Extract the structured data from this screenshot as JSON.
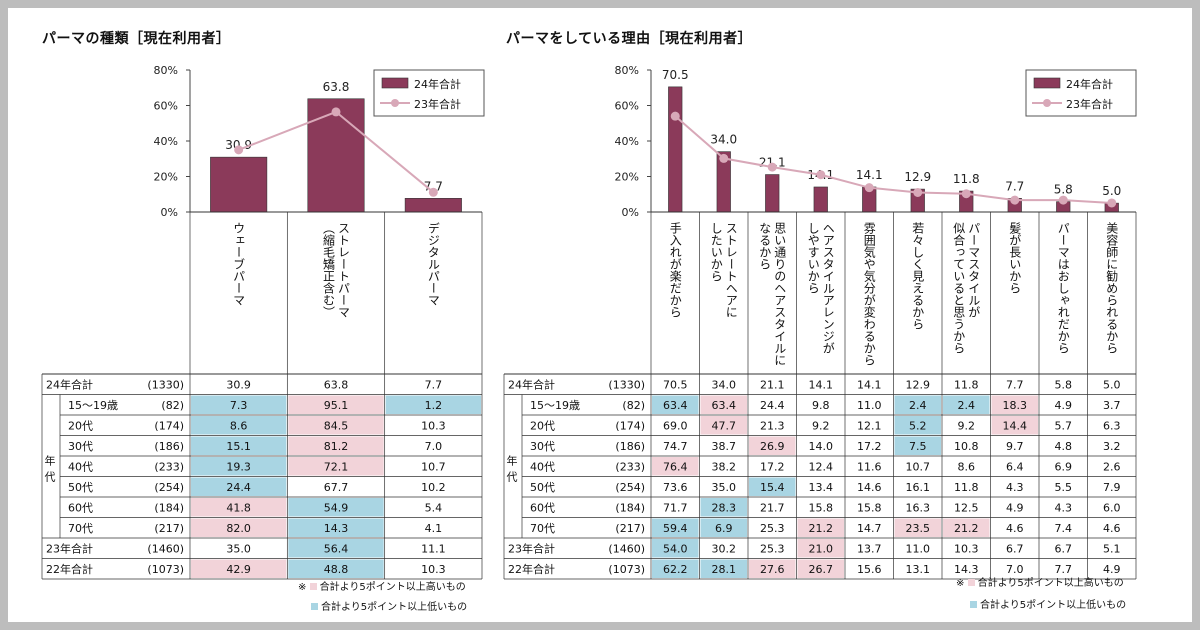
{
  "colors": {
    "bar": "#8b3a5a",
    "line": "#d8a8b8",
    "high": "#f2d3d9",
    "low": "#a9d5e3",
    "frame": "#ffffff",
    "bg": "#bdbdbd"
  },
  "left": {
    "title": "パーマの種類［現在利用者］",
    "legend": [
      "24年合計",
      "23年合計"
    ],
    "chart_data": {
      "type": "bar",
      "categories": [
        "ウェーブパーマ",
        "ストレートパーマ（縮毛矯正含む）",
        "デジタルパーマ"
      ],
      "category_lines": [
        [
          "ウェーブパーマ"
        ],
        [
          "ストレートパーマ",
          "（縮毛矯正含む）"
        ],
        [
          "デジタルパーマ"
        ]
      ],
      "series": [
        {
          "name": "24年合計",
          "values": [
            30.9,
            63.8,
            7.7
          ]
        },
        {
          "name": "23年合計",
          "values": [
            35.0,
            56.4,
            11.1
          ]
        }
      ],
      "ylim": [
        0,
        80
      ],
      "yticks": [
        "0%",
        "20%",
        "40%",
        "60%",
        "80%"
      ]
    },
    "table": {
      "side_label": "年代",
      "rows": [
        {
          "label": "24年合計",
          "n": "(1330)",
          "group": false,
          "values": [
            "30.9",
            "63.8",
            "7.7"
          ],
          "marks": [
            "",
            "",
            ""
          ]
        },
        {
          "label": "15～19歳",
          "n": "(82)",
          "group": true,
          "values": [
            "7.3",
            "95.1",
            "1.2"
          ],
          "marks": [
            "L",
            "H",
            "L"
          ]
        },
        {
          "label": "20代",
          "n": "(174)",
          "group": true,
          "values": [
            "8.6",
            "84.5",
            "10.3"
          ],
          "marks": [
            "L",
            "H",
            ""
          ]
        },
        {
          "label": "30代",
          "n": "(186)",
          "group": true,
          "values": [
            "15.1",
            "81.2",
            "7.0"
          ],
          "marks": [
            "L",
            "H",
            ""
          ]
        },
        {
          "label": "40代",
          "n": "(233)",
          "group": true,
          "values": [
            "19.3",
            "72.1",
            "10.7"
          ],
          "marks": [
            "L",
            "H",
            ""
          ]
        },
        {
          "label": "50代",
          "n": "(254)",
          "group": true,
          "values": [
            "24.4",
            "67.7",
            "10.2"
          ],
          "marks": [
            "L",
            "",
            ""
          ]
        },
        {
          "label": "60代",
          "n": "(184)",
          "group": true,
          "values": [
            "41.8",
            "54.9",
            "5.4"
          ],
          "marks": [
            "H",
            "L",
            ""
          ]
        },
        {
          "label": "70代",
          "n": "(217)",
          "group": true,
          "values": [
            "82.0",
            "14.3",
            "4.1"
          ],
          "marks": [
            "H",
            "L",
            ""
          ]
        },
        {
          "label": "23年合計",
          "n": "(1460)",
          "group": false,
          "values": [
            "35.0",
            "56.4",
            "11.1"
          ],
          "marks": [
            "",
            "L",
            ""
          ]
        },
        {
          "label": "22年合計",
          "n": "(1073)",
          "group": false,
          "values": [
            "42.9",
            "48.8",
            "10.3"
          ],
          "marks": [
            "H",
            "L",
            ""
          ]
        }
      ]
    },
    "notes": {
      "mark": "※",
      "high": "合計より5ポイント以上高いもの",
      "low": "合計より5ポイント以上低いもの"
    }
  },
  "right": {
    "title": "パーマをしている理由［現在利用者］",
    "legend": [
      "24年合計",
      "23年合計"
    ],
    "chart_data": {
      "type": "bar",
      "categories": [
        "手入れが楽だから",
        "ストレートヘアにしたいから",
        "思い通りのヘアスタイルになるから",
        "ヘアスタイルアレンジがしやすいから",
        "雰囲気や気分が変わるから",
        "若々しく見えるから",
        "パーマスタイルが似合っていると思うから",
        "髪が長いから",
        "パーマはおしゃれだから",
        "美容師に勧められるから"
      ],
      "category_lines": [
        [
          "手入れが楽だから"
        ],
        [
          "ストレートヘアに",
          "したいから"
        ],
        [
          "思い通りのヘアスタイルに",
          "なるから"
        ],
        [
          "ヘアスタイルアレンジが",
          "しやすいから"
        ],
        [
          "雰囲気や気分が変わるから"
        ],
        [
          "若々しく見えるから"
        ],
        [
          "パーマスタイルが",
          "似合っていると思うから"
        ],
        [
          "髪が長いから"
        ],
        [
          "パーマはおしゃれだから"
        ],
        [
          "美容師に勧められるから"
        ]
      ],
      "series": [
        {
          "name": "24年合計",
          "values": [
            70.5,
            34.0,
            21.1,
            14.1,
            14.1,
            12.9,
            11.8,
            7.7,
            5.8,
            5.0
          ]
        },
        {
          "name": "23年合計",
          "values": [
            54.0,
            30.2,
            25.3,
            21.0,
            13.7,
            11.0,
            10.3,
            6.7,
            6.7,
            5.1
          ]
        }
      ],
      "ylim": [
        0,
        80
      ],
      "yticks": [
        "0%",
        "20%",
        "40%",
        "60%",
        "80%"
      ]
    },
    "table": {
      "side_label": "年代",
      "rows": [
        {
          "label": "24年合計",
          "n": "(1330)",
          "group": false,
          "values": [
            "70.5",
            "34.0",
            "21.1",
            "14.1",
            "14.1",
            "12.9",
            "11.8",
            "7.7",
            "5.8",
            "5.0"
          ],
          "marks": [
            "",
            "",
            "",
            "",
            "",
            "",
            "",
            "",
            "",
            ""
          ]
        },
        {
          "label": "15～19歳",
          "n": "(82)",
          "group": true,
          "values": [
            "63.4",
            "63.4",
            "24.4",
            "9.8",
            "11.0",
            "2.4",
            "2.4",
            "18.3",
            "4.9",
            "3.7"
          ],
          "marks": [
            "L",
            "H",
            "",
            "",
            "",
            "L",
            "L",
            "H",
            "",
            ""
          ]
        },
        {
          "label": "20代",
          "n": "(174)",
          "group": true,
          "values": [
            "69.0",
            "47.7",
            "21.3",
            "9.2",
            "12.1",
            "5.2",
            "9.2",
            "14.4",
            "5.7",
            "6.3"
          ],
          "marks": [
            "",
            "H",
            "",
            "",
            "",
            "L",
            "",
            "H",
            "",
            ""
          ]
        },
        {
          "label": "30代",
          "n": "(186)",
          "group": true,
          "values": [
            "74.7",
            "38.7",
            "26.9",
            "14.0",
            "17.2",
            "7.5",
            "10.8",
            "9.7",
            "4.8",
            "3.2"
          ],
          "marks": [
            "",
            "",
            "H",
            "",
            "",
            "L",
            "",
            "",
            "",
            ""
          ]
        },
        {
          "label": "40代",
          "n": "(233)",
          "group": true,
          "values": [
            "76.4",
            "38.2",
            "17.2",
            "12.4",
            "11.6",
            "10.7",
            "8.6",
            "6.4",
            "6.9",
            "2.6"
          ],
          "marks": [
            "H",
            "",
            "",
            "",
            "",
            "",
            "",
            "",
            "",
            ""
          ]
        },
        {
          "label": "50代",
          "n": "(254)",
          "group": true,
          "values": [
            "73.6",
            "35.0",
            "15.4",
            "13.4",
            "14.6",
            "16.1",
            "11.8",
            "4.3",
            "5.5",
            "7.9"
          ],
          "marks": [
            "",
            "",
            "L",
            "",
            "",
            "",
            "",
            "",
            "",
            ""
          ]
        },
        {
          "label": "60代",
          "n": "(184)",
          "group": true,
          "values": [
            "71.7",
            "28.3",
            "21.7",
            "15.8",
            "15.8",
            "16.3",
            "12.5",
            "4.9",
            "4.3",
            "6.0"
          ],
          "marks": [
            "",
            "L",
            "",
            "",
            "",
            "",
            "",
            "",
            "",
            ""
          ]
        },
        {
          "label": "70代",
          "n": "(217)",
          "group": true,
          "values": [
            "59.4",
            "6.9",
            "25.3",
            "21.2",
            "14.7",
            "23.5",
            "21.2",
            "4.6",
            "7.4",
            "4.6"
          ],
          "marks": [
            "L",
            "L",
            "",
            "H",
            "",
            "H",
            "H",
            "",
            "",
            ""
          ]
        },
        {
          "label": "23年合計",
          "n": "(1460)",
          "group": false,
          "values": [
            "54.0",
            "30.2",
            "25.3",
            "21.0",
            "13.7",
            "11.0",
            "10.3",
            "6.7",
            "6.7",
            "5.1"
          ],
          "marks": [
            "L",
            "",
            "",
            "H",
            "",
            "",
            "",
            "",
            "",
            ""
          ]
        },
        {
          "label": "22年合計",
          "n": "(1073)",
          "group": false,
          "values": [
            "62.2",
            "28.1",
            "27.6",
            "26.7",
            "15.6",
            "13.1",
            "14.3",
            "7.0",
            "7.7",
            "4.9"
          ],
          "marks": [
            "L",
            "L",
            "H",
            "H",
            "",
            "",
            "",
            "",
            "",
            ""
          ]
        }
      ]
    },
    "notes": {
      "mark": "※",
      "high": "合計より5ポイント以上高いもの",
      "low": "合計より5ポイント以上低いもの"
    }
  }
}
